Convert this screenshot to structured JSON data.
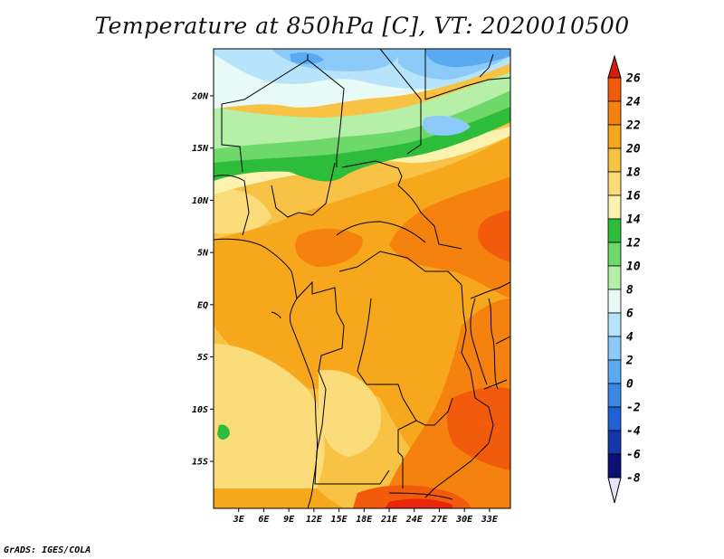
{
  "title": "Temperature at 850hPa [C], VT: 2020010500",
  "credit": "GrADS: IGES/COLA",
  "map": {
    "lat_range": [
      -19.5,
      24.5
    ],
    "lon_range": [
      0,
      35.5
    ],
    "lat_ticks": [
      {
        "value": 20,
        "label": "20N"
      },
      {
        "value": 15,
        "label": "15N"
      },
      {
        "value": 10,
        "label": "10N"
      },
      {
        "value": 5,
        "label": "5N"
      },
      {
        "value": 0,
        "label": "EQ"
      },
      {
        "value": -5,
        "label": "5S"
      },
      {
        "value": -10,
        "label": "10S"
      },
      {
        "value": -15,
        "label": "15S"
      }
    ],
    "lon_ticks": [
      {
        "value": 3,
        "label": "3E"
      },
      {
        "value": 6,
        "label": "6E"
      },
      {
        "value": 9,
        "label": "9E"
      },
      {
        "value": 12,
        "label": "12E"
      },
      {
        "value": 15,
        "label": "15E"
      },
      {
        "value": 18,
        "label": "18E"
      },
      {
        "value": 21,
        "label": "21E"
      },
      {
        "value": 24,
        "label": "24E"
      },
      {
        "value": 27,
        "label": "27E"
      },
      {
        "value": 30,
        "label": "30E"
      },
      {
        "value": 33,
        "label": "33E"
      }
    ]
  },
  "colorbar": {
    "levels": [
      "26",
      "24",
      "22",
      "20",
      "18",
      "16",
      "14",
      "12",
      "10",
      "8",
      "6",
      "4",
      "2",
      "0",
      "-2",
      "-4",
      "-6",
      "-8"
    ],
    "colors": [
      "#e8260a",
      "#f25a0c",
      "#f5820f",
      "#f7a71c",
      "#f8c245",
      "#fadc7a",
      "#fcf2b0",
      "#2ebd3a",
      "#6ed86a",
      "#b5efa8",
      "#e8faf5",
      "#b7e3fb",
      "#8ccaf9",
      "#5aaaf2",
      "#3a87e6",
      "#2160d3",
      "#1336a8",
      "#0b0f73"
    ],
    "top_color": "#d31f09",
    "bottom_color": "#e6e2f8"
  }
}
